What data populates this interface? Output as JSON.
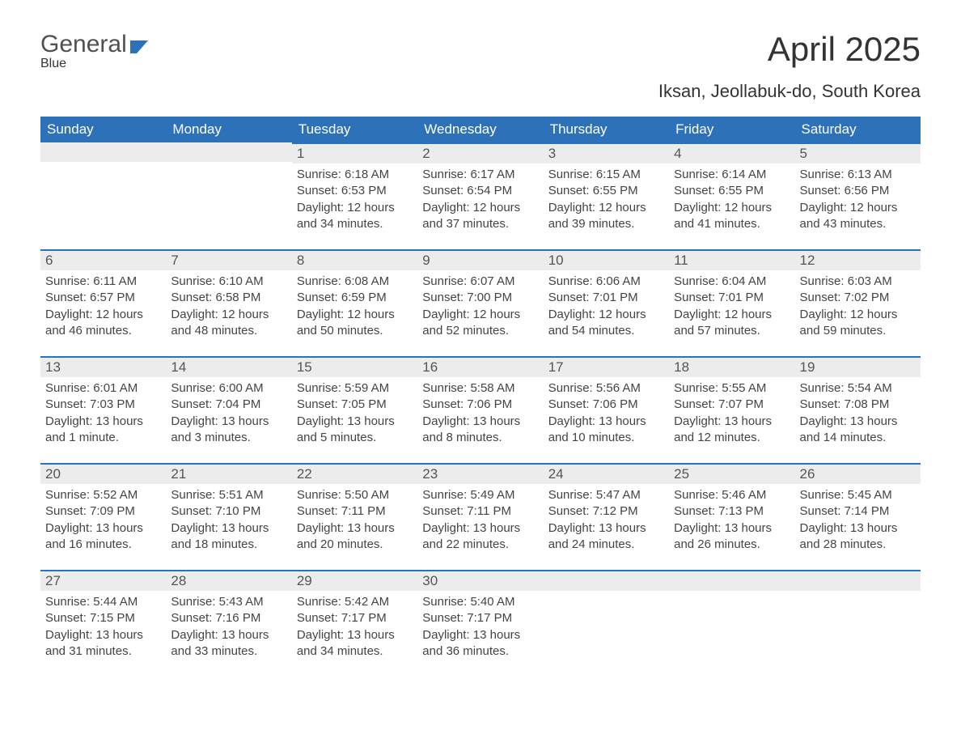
{
  "logo": {
    "general": "General",
    "blue": "Blue",
    "flag_color": "#2d72b8"
  },
  "title": "April 2025",
  "location": "Iksan, Jeollabuk-do, South Korea",
  "colors": {
    "header_bg": "#2d72b8",
    "header_text": "#ffffff",
    "daynum_bg": "#ececec",
    "daynum_border": "#2d72b8",
    "body_text": "#444444",
    "page_bg": "#ffffff"
  },
  "fonts": {
    "title_size_pt": 32,
    "location_size_pt": 17,
    "header_size_pt": 13,
    "cell_size_pt": 11
  },
  "weekdays": [
    "Sunday",
    "Monday",
    "Tuesday",
    "Wednesday",
    "Thursday",
    "Friday",
    "Saturday"
  ],
  "weeks": [
    [
      {
        "day": "",
        "sunrise": "",
        "sunset": "",
        "daylight": ""
      },
      {
        "day": "",
        "sunrise": "",
        "sunset": "",
        "daylight": ""
      },
      {
        "day": "1",
        "sunrise": "Sunrise: 6:18 AM",
        "sunset": "Sunset: 6:53 PM",
        "daylight": "Daylight: 12 hours and 34 minutes."
      },
      {
        "day": "2",
        "sunrise": "Sunrise: 6:17 AM",
        "sunset": "Sunset: 6:54 PM",
        "daylight": "Daylight: 12 hours and 37 minutes."
      },
      {
        "day": "3",
        "sunrise": "Sunrise: 6:15 AM",
        "sunset": "Sunset: 6:55 PM",
        "daylight": "Daylight: 12 hours and 39 minutes."
      },
      {
        "day": "4",
        "sunrise": "Sunrise: 6:14 AM",
        "sunset": "Sunset: 6:55 PM",
        "daylight": "Daylight: 12 hours and 41 minutes."
      },
      {
        "day": "5",
        "sunrise": "Sunrise: 6:13 AM",
        "sunset": "Sunset: 6:56 PM",
        "daylight": "Daylight: 12 hours and 43 minutes."
      }
    ],
    [
      {
        "day": "6",
        "sunrise": "Sunrise: 6:11 AM",
        "sunset": "Sunset: 6:57 PM",
        "daylight": "Daylight: 12 hours and 46 minutes."
      },
      {
        "day": "7",
        "sunrise": "Sunrise: 6:10 AM",
        "sunset": "Sunset: 6:58 PM",
        "daylight": "Daylight: 12 hours and 48 minutes."
      },
      {
        "day": "8",
        "sunrise": "Sunrise: 6:08 AM",
        "sunset": "Sunset: 6:59 PM",
        "daylight": "Daylight: 12 hours and 50 minutes."
      },
      {
        "day": "9",
        "sunrise": "Sunrise: 6:07 AM",
        "sunset": "Sunset: 7:00 PM",
        "daylight": "Daylight: 12 hours and 52 minutes."
      },
      {
        "day": "10",
        "sunrise": "Sunrise: 6:06 AM",
        "sunset": "Sunset: 7:01 PM",
        "daylight": "Daylight: 12 hours and 54 minutes."
      },
      {
        "day": "11",
        "sunrise": "Sunrise: 6:04 AM",
        "sunset": "Sunset: 7:01 PM",
        "daylight": "Daylight: 12 hours and 57 minutes."
      },
      {
        "day": "12",
        "sunrise": "Sunrise: 6:03 AM",
        "sunset": "Sunset: 7:02 PM",
        "daylight": "Daylight: 12 hours and 59 minutes."
      }
    ],
    [
      {
        "day": "13",
        "sunrise": "Sunrise: 6:01 AM",
        "sunset": "Sunset: 7:03 PM",
        "daylight": "Daylight: 13 hours and 1 minute."
      },
      {
        "day": "14",
        "sunrise": "Sunrise: 6:00 AM",
        "sunset": "Sunset: 7:04 PM",
        "daylight": "Daylight: 13 hours and 3 minutes."
      },
      {
        "day": "15",
        "sunrise": "Sunrise: 5:59 AM",
        "sunset": "Sunset: 7:05 PM",
        "daylight": "Daylight: 13 hours and 5 minutes."
      },
      {
        "day": "16",
        "sunrise": "Sunrise: 5:58 AM",
        "sunset": "Sunset: 7:06 PM",
        "daylight": "Daylight: 13 hours and 8 minutes."
      },
      {
        "day": "17",
        "sunrise": "Sunrise: 5:56 AM",
        "sunset": "Sunset: 7:06 PM",
        "daylight": "Daylight: 13 hours and 10 minutes."
      },
      {
        "day": "18",
        "sunrise": "Sunrise: 5:55 AM",
        "sunset": "Sunset: 7:07 PM",
        "daylight": "Daylight: 13 hours and 12 minutes."
      },
      {
        "day": "19",
        "sunrise": "Sunrise: 5:54 AM",
        "sunset": "Sunset: 7:08 PM",
        "daylight": "Daylight: 13 hours and 14 minutes."
      }
    ],
    [
      {
        "day": "20",
        "sunrise": "Sunrise: 5:52 AM",
        "sunset": "Sunset: 7:09 PM",
        "daylight": "Daylight: 13 hours and 16 minutes."
      },
      {
        "day": "21",
        "sunrise": "Sunrise: 5:51 AM",
        "sunset": "Sunset: 7:10 PM",
        "daylight": "Daylight: 13 hours and 18 minutes."
      },
      {
        "day": "22",
        "sunrise": "Sunrise: 5:50 AM",
        "sunset": "Sunset: 7:11 PM",
        "daylight": "Daylight: 13 hours and 20 minutes."
      },
      {
        "day": "23",
        "sunrise": "Sunrise: 5:49 AM",
        "sunset": "Sunset: 7:11 PM",
        "daylight": "Daylight: 13 hours and 22 minutes."
      },
      {
        "day": "24",
        "sunrise": "Sunrise: 5:47 AM",
        "sunset": "Sunset: 7:12 PM",
        "daylight": "Daylight: 13 hours and 24 minutes."
      },
      {
        "day": "25",
        "sunrise": "Sunrise: 5:46 AM",
        "sunset": "Sunset: 7:13 PM",
        "daylight": "Daylight: 13 hours and 26 minutes."
      },
      {
        "day": "26",
        "sunrise": "Sunrise: 5:45 AM",
        "sunset": "Sunset: 7:14 PM",
        "daylight": "Daylight: 13 hours and 28 minutes."
      }
    ],
    [
      {
        "day": "27",
        "sunrise": "Sunrise: 5:44 AM",
        "sunset": "Sunset: 7:15 PM",
        "daylight": "Daylight: 13 hours and 31 minutes."
      },
      {
        "day": "28",
        "sunrise": "Sunrise: 5:43 AM",
        "sunset": "Sunset: 7:16 PM",
        "daylight": "Daylight: 13 hours and 33 minutes."
      },
      {
        "day": "29",
        "sunrise": "Sunrise: 5:42 AM",
        "sunset": "Sunset: 7:17 PM",
        "daylight": "Daylight: 13 hours and 34 minutes."
      },
      {
        "day": "30",
        "sunrise": "Sunrise: 5:40 AM",
        "sunset": "Sunset: 7:17 PM",
        "daylight": "Daylight: 13 hours and 36 minutes."
      },
      {
        "day": "",
        "sunrise": "",
        "sunset": "",
        "daylight": ""
      },
      {
        "day": "",
        "sunrise": "",
        "sunset": "",
        "daylight": ""
      },
      {
        "day": "",
        "sunrise": "",
        "sunset": "",
        "daylight": ""
      }
    ]
  ]
}
